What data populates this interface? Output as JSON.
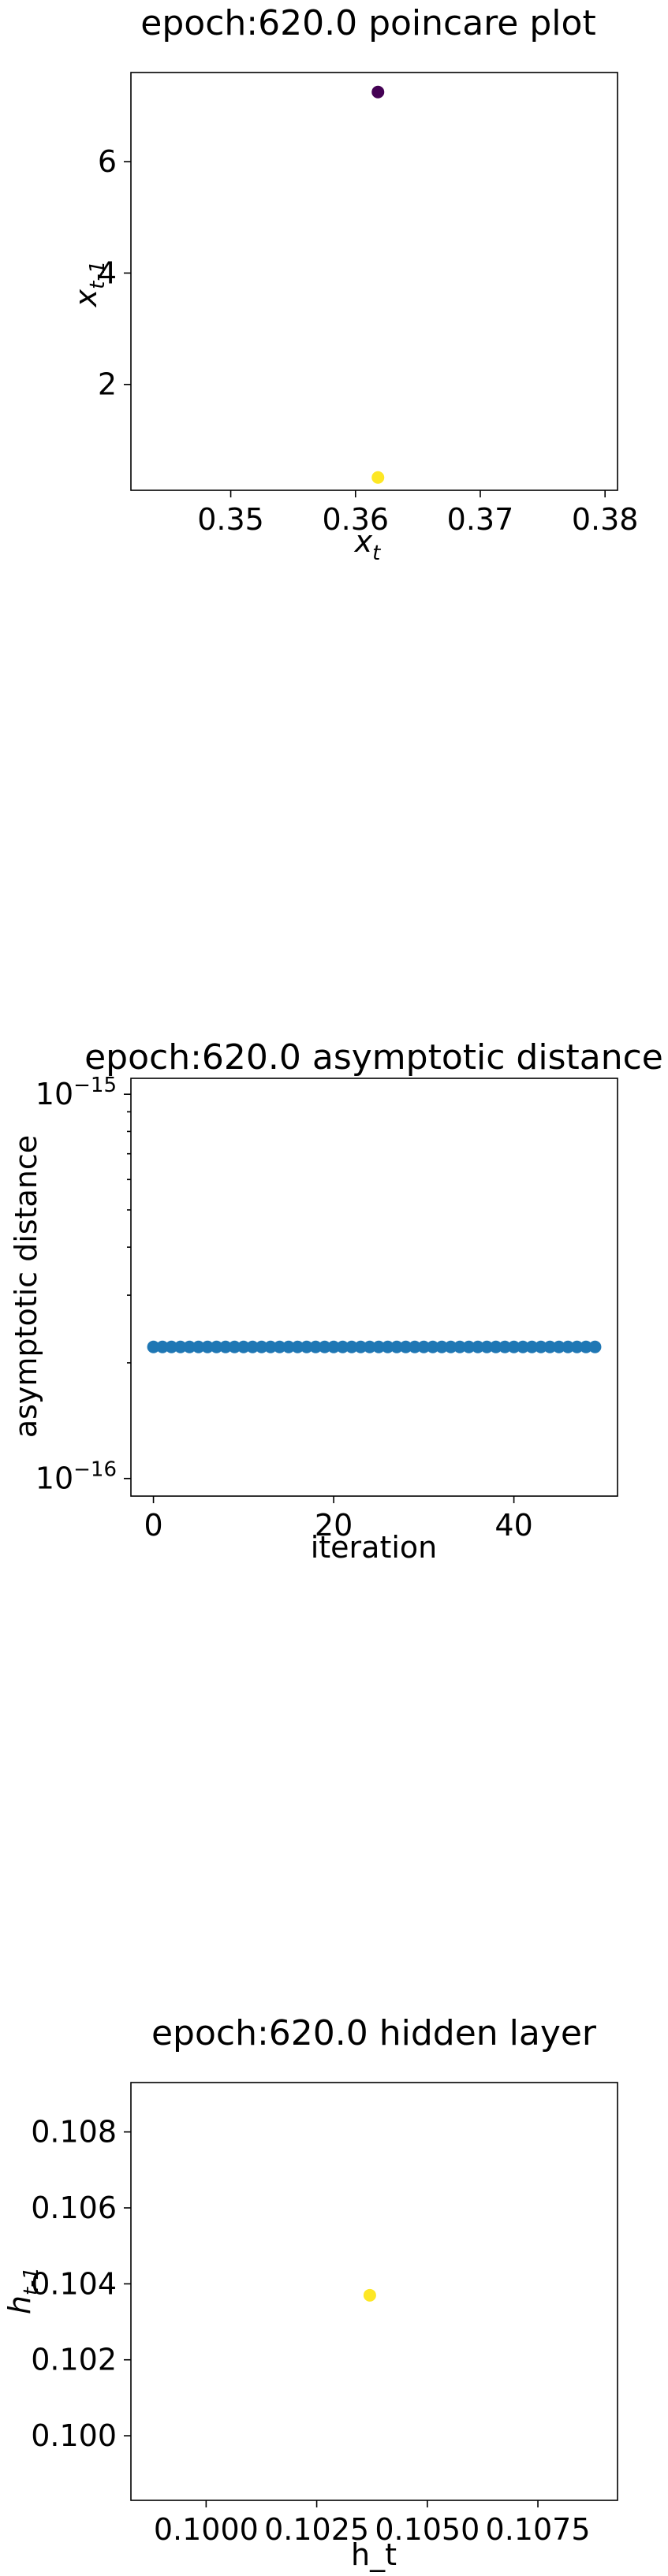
{
  "chart_data": [
    {
      "type": "scatter",
      "title": "epoch:620.0 poincare plot",
      "xlabel": "x",
      "xlabel_sub": "t",
      "ylabel": "x",
      "ylabel_sub": "t-1",
      "xlim": [
        0.342,
        0.381
      ],
      "ylim": [
        0.1,
        7.6
      ],
      "x_ticks": [
        "0.35",
        "0.36",
        "0.37",
        "0.38"
      ],
      "x_tick_values": [
        0.35,
        0.36,
        0.37,
        0.38
      ],
      "y_ticks": [
        "2",
        "4",
        "6"
      ],
      "y_tick_values": [
        2,
        4,
        6
      ],
      "grid": false,
      "points": [
        {
          "x": 0.3618,
          "y": 7.25,
          "color": "#440154"
        },
        {
          "x": 0.3618,
          "y": 0.33,
          "color": "#fde725"
        }
      ]
    },
    {
      "type": "scatter",
      "title": "epoch:620.0 asymptotic distance",
      "xlabel": "iteration",
      "ylabel": "asymptotic distance",
      "yscale": "log",
      "xlim": [
        -2.5,
        51.5
      ],
      "ylim": [
        9e-17,
        1.1e-15
      ],
      "x_ticks": [
        "0",
        "20",
        "40"
      ],
      "x_tick_values": [
        0,
        20,
        40
      ],
      "y_ticks": [
        {
          "base": "10",
          "exp": "−16",
          "value": 1e-16
        },
        {
          "base": "10",
          "exp": "−15",
          "value": 1e-15
        }
      ],
      "grid": false,
      "color": "#1f77b4",
      "x": [
        0,
        1,
        2,
        3,
        4,
        5,
        6,
        7,
        8,
        9,
        10,
        11,
        12,
        13,
        14,
        15,
        16,
        17,
        18,
        19,
        20,
        21,
        22,
        23,
        24,
        25,
        26,
        27,
        28,
        29,
        30,
        31,
        32,
        33,
        34,
        35,
        36,
        37,
        38,
        39,
        40,
        41,
        42,
        43,
        44,
        45,
        46,
        47,
        48,
        49
      ],
      "y_constant": 2.2e-16
    },
    {
      "type": "scatter",
      "title": "epoch:620.0 hidden layer",
      "xlabel": "h_t",
      "ylabel": "h",
      "ylabel_sub": "t-1",
      "xlim": [
        0.0983,
        0.1093
      ],
      "ylim": [
        0.0983,
        0.1093
      ],
      "x_ticks": [
        "0.1000",
        "0.1025",
        "0.1050",
        "0.1075"
      ],
      "x_tick_values": [
        0.1,
        0.1025,
        0.105,
        0.1075
      ],
      "y_ticks": [
        "0.100",
        "0.102",
        "0.104",
        "0.106",
        "0.108"
      ],
      "y_tick_values": [
        0.1,
        0.102,
        0.104,
        0.106,
        0.108
      ],
      "grid": false,
      "points": [
        {
          "x": 0.1037,
          "y": 0.1037,
          "color": "#fde725"
        }
      ]
    }
  ]
}
